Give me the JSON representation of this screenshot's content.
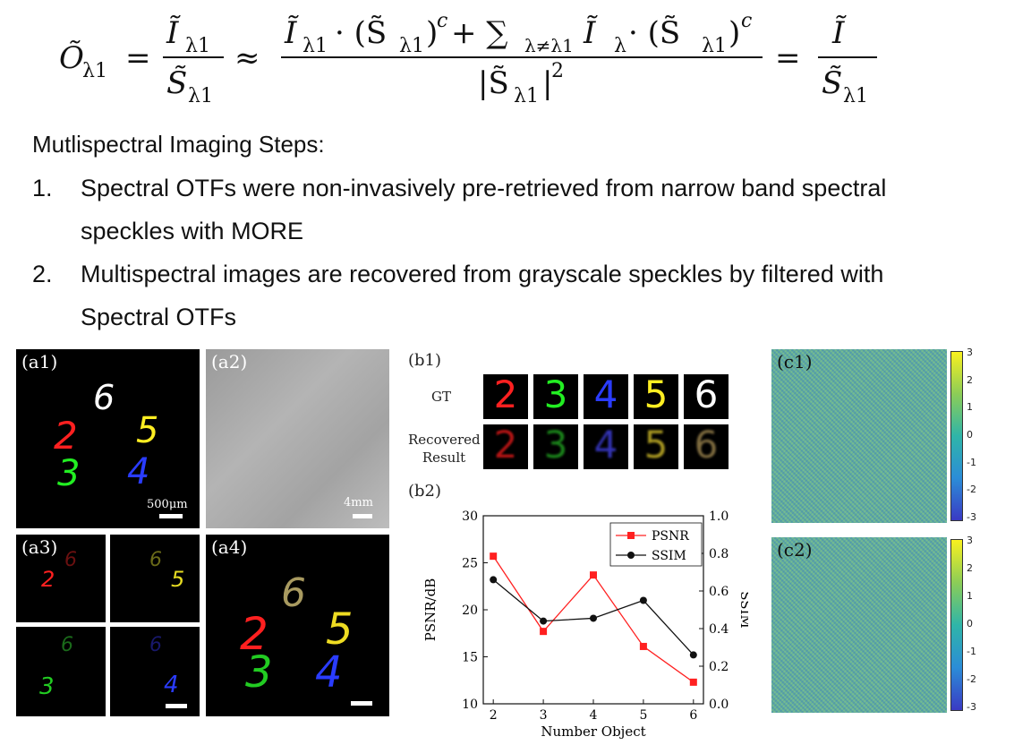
{
  "equation": {
    "lhs": "Õ",
    "lhs_sub": "λ1",
    "f1_num": "Ĩ",
    "f1_num_sub": "λ1",
    "f1_den": "S̃",
    "f1_den_sub": "λ1",
    "approx": "≈",
    "big_num_a": "Ĩ",
    "big_num_a_sub": "λ1",
    "big_num_b": "· (S̃",
    "big_num_b_sub": "λ1",
    "big_num_c": ")",
    "big_num_c_sup": "c",
    "big_num_d": " + ∑",
    "big_num_d_sub": "λ≠λ1",
    "big_num_e": " Ĩ",
    "big_num_e_sub": "λ",
    "big_num_f": " · (S̃",
    "big_num_f_sub": "λ1",
    "big_num_g": ")",
    "big_num_g_sup": "c",
    "big_den": "|S̃",
    "big_den_sub": "λ1",
    "big_den_end": "|",
    "big_den_sup": "2",
    "eq": "=",
    "f3_num": "Ĩ",
    "f3_den": "S̃",
    "f3_den_sub": "λ1"
  },
  "steps": {
    "title": "Mutlispectral Imaging Steps:",
    "items": [
      {
        "num": "1.",
        "line1": "Spectral OTFs were non-invasively pre-retrieved from narrow band spectral",
        "line2": "speckles with MORE"
      },
      {
        "num": "2.",
        "line1": "Multispectral images are recovered from grayscale speckles by filtered with",
        "line2": "Spectral OTFs"
      }
    ]
  },
  "panels": {
    "a1": "(a1)",
    "a2": "(a2)",
    "a3": "(a3)",
    "a4": "(a4)",
    "b1": "(b1)",
    "b2": "(b2)",
    "c1": "(c1)",
    "c2": "(c2)",
    "scale_a1": "500μm",
    "scale_a2": "4mm",
    "gt_label": "GT",
    "recovered_label_1": "Recovered",
    "recovered_label_2": "Result",
    "digits": [
      "2",
      "3",
      "4",
      "5",
      "6"
    ],
    "digit_colors": [
      "#ff2020",
      "#22ee22",
      "#2a3cff",
      "#ffee22",
      "#ffffff"
    ]
  },
  "colorbar": {
    "ticks": [
      "3",
      "2",
      "1",
      "0",
      "-1",
      "-2",
      "-3"
    ]
  },
  "chart_data": {
    "type": "line",
    "x": [
      2,
      3,
      4,
      5,
      6
    ],
    "xlabel": "Number Object",
    "ylabel": "PSNR/dB",
    "y2label": "SSIM",
    "ylim": [
      10,
      30
    ],
    "y2lim": [
      0.0,
      1.0
    ],
    "yticks": [
      "10",
      "15",
      "20",
      "25",
      "30"
    ],
    "y2ticks": [
      "0.0",
      "0.2",
      "0.4",
      "0.6",
      "0.8",
      "1.0"
    ],
    "xticks": [
      "2",
      "3",
      "4",
      "5",
      "6"
    ],
    "legend": "top-right",
    "series": [
      {
        "name": "PSNR",
        "axis": "left",
        "color": "#ff2020",
        "marker": "square",
        "values": [
          25.7,
          17.7,
          23.7,
          16.1,
          12.3
        ]
      },
      {
        "name": "SSIM",
        "axis": "right",
        "color": "#111111",
        "marker": "circle",
        "values": [
          0.66,
          0.44,
          0.455,
          0.55,
          0.26
        ]
      }
    ]
  }
}
